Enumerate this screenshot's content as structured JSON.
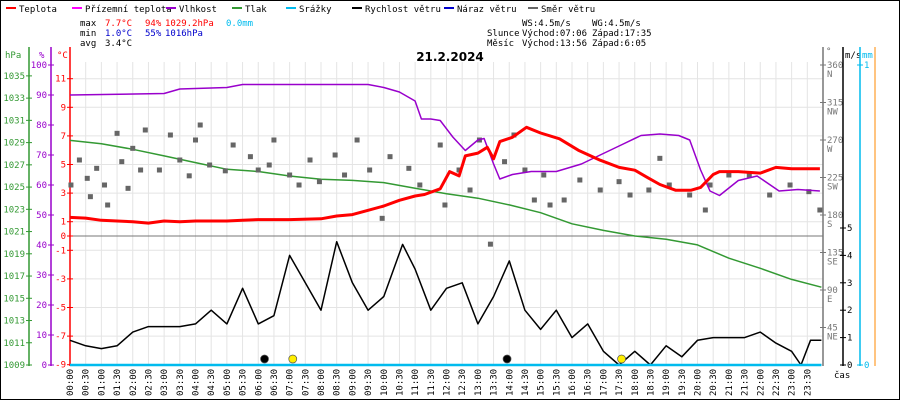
{
  "legend": [
    {
      "label": "Teplota",
      "color": "#ff0000"
    },
    {
      "label": "Přízemní teplota",
      "color": "#ff00ff"
    },
    {
      "label": "Vlhkost",
      "color": "#9900cc"
    },
    {
      "label": "Tlak",
      "color": "#339933"
    },
    {
      "label": "Srážky",
      "color": "#00bbee"
    },
    {
      "label": "Rychlost větru",
      "color": "#000000"
    },
    {
      "label": "Náraz větru",
      "color": "#0000cc"
    },
    {
      "label": "Směr větru",
      "color": "#666666"
    }
  ],
  "stats": {
    "max_label": "max",
    "max_temp": "7.7°C",
    "max_hum": "94%",
    "max_press": "1029.2hPa",
    "max_rain": "0.0mm",
    "min_label": "min",
    "min_temp": "1.0°C",
    "min_hum": "55%",
    "min_press": "1016hPa",
    "avg_label": "avg",
    "avg_temp": "3.4°C"
  },
  "info": {
    "ws": "WS:4.5m/s",
    "wg": "WG:4.5m/s",
    "sun_label": "Slunce",
    "sun_rise": "Východ:07:06",
    "sun_set": "Západ:17:35",
    "moon_label": "Měsíc",
    "moon_rise": "Východ:13:56",
    "moon_set": "Západ:6:05"
  },
  "chart_data": {
    "type": "line",
    "title": "21.2.2024",
    "xlabel": "čas",
    "x_ticks": [
      "00:00",
      "00:30",
      "01:00",
      "01:30",
      "02:00",
      "02:30",
      "03:00",
      "03:30",
      "04:00",
      "04:30",
      "05:00",
      "05:30",
      "06:00",
      "06:30",
      "07:00",
      "07:30",
      "08:00",
      "08:30",
      "09:00",
      "09:30",
      "10:00",
      "10:30",
      "11:00",
      "11:30",
      "12:00",
      "12:30",
      "13:00",
      "13:30",
      "14:00",
      "14:30",
      "15:00",
      "15:30",
      "16:00",
      "16:30",
      "17:00",
      "17:30",
      "18:00",
      "18:30",
      "19:00",
      "19:30",
      "20:00",
      "20:30",
      "21:00",
      "21:30",
      "22:00",
      "22:30",
      "23:00",
      "23:30"
    ],
    "axes": {
      "pressure": {
        "unit": "hPa",
        "range": [
          1009,
          1036
        ],
        "ticks": [
          "1035",
          "1033",
          "1031",
          "1029",
          "1027",
          "1025",
          "1023",
          "1021",
          "1019",
          "1017",
          "1015",
          "1013",
          "1011",
          "1009"
        ]
      },
      "humidity": {
        "unit": "%",
        "range": [
          0,
          100
        ],
        "ticks": [
          "100",
          "90",
          "80",
          "70",
          "60",
          "50",
          "40",
          "30",
          "20",
          "10",
          "0"
        ]
      },
      "temperature": {
        "unit": "°C",
        "range": [
          -9,
          12
        ],
        "ticks": [
          "11",
          "9",
          "7",
          "5",
          "3",
          "1",
          "0",
          "-1",
          "-3",
          "-5",
          "-7",
          "-9"
        ]
      },
      "direction": {
        "unit": "°",
        "range": [
          0,
          360
        ],
        "ticks": [
          {
            "v": "360",
            "c": "N"
          },
          {
            "v": "315",
            "c": "NW"
          },
          {
            "v": "270",
            "c": "W"
          },
          {
            "v": "225",
            "c": "SW"
          },
          {
            "v": "180",
            "c": "S"
          },
          {
            "v": "135",
            "c": "SE"
          },
          {
            "v": "90",
            "c": "E"
          },
          {
            "v": "45",
            "c": "NE"
          }
        ]
      },
      "wind": {
        "unit": "m/s",
        "range": [
          0,
          5
        ],
        "ticks": [
          "5",
          "4",
          "3",
          "2",
          "1",
          "0"
        ]
      },
      "rain": {
        "unit": "mm",
        "range": [
          0,
          1
        ],
        "ticks": [
          "1",
          "0"
        ]
      }
    },
    "series": [
      {
        "name": "Teplota",
        "axis": "temperature",
        "color": "#ff0000",
        "points": [
          [
            0,
            1.3
          ],
          [
            0.5,
            1.25
          ],
          [
            1,
            1.1
          ],
          [
            1.5,
            1.05
          ],
          [
            2,
            1.0
          ],
          [
            2.5,
            0.9
          ],
          [
            3,
            1.05
          ],
          [
            3.5,
            1.0
          ],
          [
            4,
            1.05
          ],
          [
            5,
            1.05
          ],
          [
            5.5,
            1.1
          ],
          [
            6,
            1.15
          ],
          [
            7,
            1.15
          ],
          [
            8,
            1.2
          ],
          [
            8.5,
            1.4
          ],
          [
            9,
            1.5
          ],
          [
            9.5,
            1.8
          ],
          [
            10,
            2.1
          ],
          [
            10.5,
            2.5
          ],
          [
            11,
            2.8
          ],
          [
            11.3,
            2.9
          ],
          [
            11.8,
            3.3
          ],
          [
            12.1,
            4.5
          ],
          [
            12.4,
            4.2
          ],
          [
            12.6,
            5.6
          ],
          [
            13,
            5.8
          ],
          [
            13.3,
            6.2
          ],
          [
            13.5,
            5.4
          ],
          [
            13.7,
            6.6
          ],
          [
            14.1,
            6.9
          ],
          [
            14.55,
            7.6
          ],
          [
            15,
            7.2
          ],
          [
            15.6,
            6.8
          ],
          [
            16.2,
            6.0
          ],
          [
            16.9,
            5.3
          ],
          [
            17.5,
            4.8
          ],
          [
            18,
            4.6
          ],
          [
            18.4,
            4.1
          ],
          [
            18.8,
            3.6
          ],
          [
            19.3,
            3.2
          ],
          [
            19.8,
            3.2
          ],
          [
            20.1,
            3.4
          ],
          [
            20.5,
            4.3
          ],
          [
            20.7,
            4.5
          ],
          [
            21.3,
            4.5
          ],
          [
            22,
            4.4
          ],
          [
            22.5,
            4.8
          ],
          [
            23,
            4.7
          ],
          [
            23.9,
            4.7
          ]
        ]
      },
      {
        "name": "Vlhkost",
        "axis": "humidity",
        "color": "#9900cc",
        "points": [
          [
            0,
            90
          ],
          [
            3,
            90.5
          ],
          [
            3.5,
            92
          ],
          [
            5,
            92.5
          ],
          [
            5.5,
            93.5
          ],
          [
            9.5,
            93.5
          ],
          [
            10,
            92.5
          ],
          [
            10.5,
            91
          ],
          [
            11,
            88
          ],
          [
            11.2,
            82
          ],
          [
            11.5,
            82
          ],
          [
            11.8,
            81.5
          ],
          [
            12.2,
            76
          ],
          [
            12.6,
            71.5
          ],
          [
            13,
            75
          ],
          [
            13.2,
            75.5
          ],
          [
            13.5,
            67
          ],
          [
            13.7,
            62
          ],
          [
            14.1,
            63.5
          ],
          [
            14.7,
            64.5
          ],
          [
            15.5,
            64.5
          ],
          [
            16.3,
            67
          ],
          [
            16.9,
            70
          ],
          [
            17.6,
            73.5
          ],
          [
            18.2,
            76.5
          ],
          [
            18.8,
            77
          ],
          [
            19.4,
            76.5
          ],
          [
            19.75,
            75
          ],
          [
            20.1,
            65
          ],
          [
            20.4,
            58
          ],
          [
            20.7,
            56.5
          ],
          [
            21.3,
            61.5
          ],
          [
            21.9,
            63
          ],
          [
            22.6,
            58
          ],
          [
            23.2,
            58.5
          ],
          [
            23.9,
            58
          ]
        ]
      },
      {
        "name": "Tlak",
        "axis": "pressure",
        "color": "#339933",
        "points": [
          [
            0,
            1029.2
          ],
          [
            1,
            1028.9
          ],
          [
            2,
            1028.4
          ],
          [
            3,
            1027.8
          ],
          [
            4,
            1027.2
          ],
          [
            5,
            1026.6
          ],
          [
            6,
            1026.4
          ],
          [
            7,
            1026.0
          ],
          [
            8,
            1025.7
          ],
          [
            9,
            1025.6
          ],
          [
            10,
            1025.4
          ],
          [
            11,
            1024.9
          ],
          [
            12,
            1024.4
          ],
          [
            13,
            1024.0
          ],
          [
            14,
            1023.4
          ],
          [
            15,
            1022.7
          ],
          [
            16,
            1021.7
          ],
          [
            17,
            1021.1
          ],
          [
            18,
            1020.6
          ],
          [
            19,
            1020.3
          ],
          [
            20,
            1019.8
          ],
          [
            21,
            1018.6
          ],
          [
            22,
            1017.7
          ],
          [
            23,
            1016.7
          ],
          [
            23.95,
            1016.0
          ]
        ]
      },
      {
        "name": "Srážky",
        "axis": "rain",
        "color": "#00bbee",
        "points": [
          [
            0,
            0
          ],
          [
            23.95,
            0
          ]
        ]
      },
      {
        "name": "Rychlost větru",
        "axis": "wind",
        "color": "#000000",
        "points": [
          [
            0,
            0.9
          ],
          [
            0.5,
            0.7
          ],
          [
            1,
            0.6
          ],
          [
            1.5,
            0.7
          ],
          [
            2,
            1.2
          ],
          [
            2.5,
            1.4
          ],
          [
            3,
            1.4
          ],
          [
            3.5,
            1.4
          ],
          [
            4,
            1.5
          ],
          [
            4.5,
            2.0
          ],
          [
            5,
            1.5
          ],
          [
            5.5,
            2.8
          ],
          [
            6,
            1.5
          ],
          [
            6.5,
            1.8
          ],
          [
            7,
            4.0
          ],
          [
            7.5,
            3.0
          ],
          [
            8,
            2.0
          ],
          [
            8.5,
            4.5
          ],
          [
            9,
            3.0
          ],
          [
            9.5,
            2.0
          ],
          [
            10,
            2.5
          ],
          [
            10.6,
            4.4
          ],
          [
            11,
            3.5
          ],
          [
            11.5,
            2.0
          ],
          [
            12,
            2.8
          ],
          [
            12.5,
            3.0
          ],
          [
            13,
            1.5
          ],
          [
            13.5,
            2.5
          ],
          [
            14,
            3.8
          ],
          [
            14.5,
            2.0
          ],
          [
            15,
            1.3
          ],
          [
            15.5,
            2.0
          ],
          [
            16,
            1.0
          ],
          [
            16.5,
            1.5
          ],
          [
            17,
            0.5
          ],
          [
            17.5,
            0.0
          ],
          [
            18,
            0.5
          ],
          [
            18.5,
            0.0
          ],
          [
            19,
            0.7
          ],
          [
            19.5,
            0.3
          ],
          [
            20,
            0.9
          ],
          [
            20.5,
            1.0
          ],
          [
            21,
            1.0
          ],
          [
            21.5,
            1.0
          ],
          [
            22,
            1.2
          ],
          [
            22.5,
            0.8
          ],
          [
            23,
            0.5
          ],
          [
            23.3,
            0.0
          ],
          [
            23.6,
            0.9
          ],
          [
            23.95,
            0.9
          ]
        ]
      },
      {
        "name": "Směr větru",
        "axis": "direction",
        "color": "#666666",
        "style": "scatter",
        "points": [
          [
            0.03,
            216
          ],
          [
            0.3,
            246
          ],
          [
            0.55,
            224
          ],
          [
            0.65,
            202
          ],
          [
            0.85,
            236
          ],
          [
            1.1,
            216
          ],
          [
            1.2,
            192
          ],
          [
            1.5,
            278
          ],
          [
            1.65,
            244
          ],
          [
            1.85,
            212
          ],
          [
            2.0,
            260
          ],
          [
            2.25,
            234
          ],
          [
            2.4,
            282
          ],
          [
            2.85,
            234
          ],
          [
            3.2,
            276
          ],
          [
            3.5,
            246
          ],
          [
            3.8,
            227
          ],
          [
            4.0,
            270
          ],
          [
            4.15,
            288
          ],
          [
            4.45,
            240
          ],
          [
            4.95,
            233
          ],
          [
            5.2,
            264
          ],
          [
            5.75,
            250
          ],
          [
            6.0,
            234
          ],
          [
            6.35,
            240
          ],
          [
            6.5,
            270
          ],
          [
            7.0,
            228
          ],
          [
            7.3,
            216
          ],
          [
            7.65,
            246
          ],
          [
            7.95,
            220
          ],
          [
            8.45,
            252
          ],
          [
            8.75,
            228
          ],
          [
            9.15,
            270
          ],
          [
            9.55,
            234
          ],
          [
            9.95,
            176
          ],
          [
            10.2,
            250
          ],
          [
            10.8,
            236
          ],
          [
            11.15,
            216
          ],
          [
            11.8,
            264
          ],
          [
            11.95,
            192
          ],
          [
            12.4,
            234
          ],
          [
            12.75,
            210
          ],
          [
            13.05,
            270
          ],
          [
            13.4,
            145
          ],
          [
            13.85,
            244
          ],
          [
            14.15,
            276
          ],
          [
            14.5,
            234
          ],
          [
            14.8,
            198
          ],
          [
            15.1,
            228
          ],
          [
            15.3,
            192
          ],
          [
            15.75,
            198
          ],
          [
            16.25,
            222
          ],
          [
            16.9,
            210
          ],
          [
            17.5,
            220
          ],
          [
            17.85,
            204
          ],
          [
            18.45,
            210
          ],
          [
            18.8,
            248
          ],
          [
            19.1,
            216
          ],
          [
            19.75,
            204
          ],
          [
            20.25,
            186
          ],
          [
            20.4,
            216
          ],
          [
            21.0,
            228
          ],
          [
            21.65,
            228
          ],
          [
            22.3,
            204
          ],
          [
            22.95,
            216
          ],
          [
            23.55,
            208
          ],
          [
            23.9,
            186
          ]
        ]
      }
    ],
    "markers": [
      {
        "name": "moon-set",
        "time": 6.2,
        "color": "#000000"
      },
      {
        "name": "sun-rise",
        "time": 7.1,
        "color": "#ffee00"
      },
      {
        "name": "moon-rise",
        "time": 13.93,
        "color": "#000000"
      },
      {
        "name": "sun-set",
        "time": 17.58,
        "color": "#ffee00"
      }
    ]
  }
}
